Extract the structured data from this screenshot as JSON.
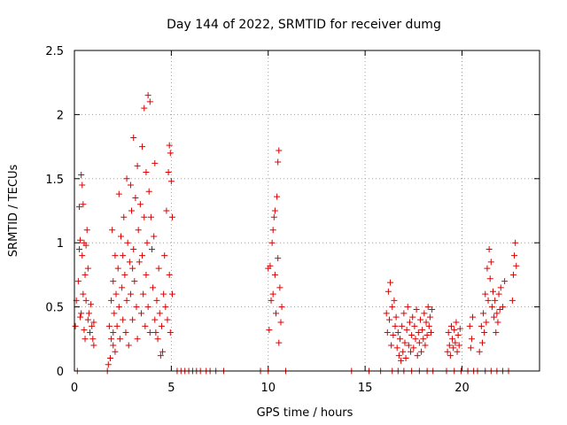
{
  "chart_data": {
    "type": "scatter",
    "title": "Day 144 of 2022, SRMTID for receiver dumg",
    "xlabel": "GPS time / hours",
    "ylabel": "SRMTID / TECUs",
    "xlim": [
      0,
      24
    ],
    "ylim": [
      0,
      2.5
    ],
    "xticks": [
      0,
      5,
      10,
      15,
      20
    ],
    "yticks": [
      0,
      0.5,
      1,
      1.5,
      2,
      2.5
    ],
    "xtick_labels": [
      "0",
      "5",
      "10",
      "15",
      "20"
    ],
    "ytick_labels": [
      "0",
      "0.5",
      "1",
      "1.5",
      "2",
      "2.5"
    ],
    "grid": true,
    "marker": "+",
    "color": "#dd0000",
    "series": [
      {
        "name": "SRMTID",
        "points": [
          [
            0.05,
            0.35
          ],
          [
            0.1,
            0.55
          ],
          [
            0.15,
            0.0
          ],
          [
            0.2,
            0.7
          ],
          [
            0.25,
            1.28
          ],
          [
            0.25,
            0.95
          ],
          [
            0.3,
            1.02
          ],
          [
            0.3,
            0.42
          ],
          [
            0.35,
            1.53
          ],
          [
            0.4,
            1.45
          ],
          [
            0.4,
            0.9
          ],
          [
            0.45,
            1.3
          ],
          [
            0.45,
            0.6
          ],
          [
            0.5,
            1.0
          ],
          [
            0.55,
            0.75
          ],
          [
            0.55,
            0.25
          ],
          [
            0.6,
            0.98
          ],
          [
            0.6,
            0.55
          ],
          [
            0.7,
            0.4
          ],
          [
            0.7,
            0.8
          ],
          [
            0.75,
            0.45
          ],
          [
            0.8,
            0.3
          ],
          [
            0.85,
            0.52
          ],
          [
            0.9,
            0.35
          ],
          [
            0.95,
            0.25
          ],
          [
            1.0,
            0.38
          ],
          [
            1.0,
            0.2
          ],
          [
            0.65,
            1.1
          ],
          [
            0.5,
            0.32
          ],
          [
            0.35,
            0.45
          ],
          [
            1.7,
            0.0
          ],
          [
            1.75,
            0.05
          ],
          [
            1.8,
            0.35
          ],
          [
            1.85,
            0.1
          ],
          [
            1.9,
            0.55
          ],
          [
            1.9,
            0.25
          ],
          [
            1.95,
            1.1
          ],
          [
            2.0,
            0.7
          ],
          [
            2.0,
            0.3
          ],
          [
            2.05,
            0.45
          ],
          [
            2.1,
            0.9
          ],
          [
            2.1,
            0.15
          ],
          [
            2.15,
            0.6
          ],
          [
            2.2,
            0.35
          ],
          [
            2.25,
            0.8
          ],
          [
            2.3,
            1.38
          ],
          [
            2.3,
            0.5
          ],
          [
            2.35,
            0.25
          ],
          [
            2.4,
            1.05
          ],
          [
            2.45,
            0.65
          ],
          [
            2.5,
            0.9
          ],
          [
            2.5,
            0.4
          ],
          [
            2.55,
            1.2
          ],
          [
            2.6,
            0.75
          ],
          [
            2.65,
            0.3
          ],
          [
            2.7,
            1.5
          ],
          [
            2.7,
            0.55
          ],
          [
            2.75,
            1.0
          ],
          [
            2.8,
            0.2
          ],
          [
            2.85,
            0.85
          ],
          [
            2.9,
            1.45
          ],
          [
            2.9,
            0.6
          ],
          [
            2.95,
            1.25
          ],
          [
            3.0,
            0.4
          ],
          [
            3.05,
            1.82
          ],
          [
            3.05,
            0.95
          ],
          [
            3.1,
            0.7
          ],
          [
            3.15,
            1.35
          ],
          [
            3.2,
            0.5
          ],
          [
            3.25,
            1.6
          ],
          [
            3.25,
            0.25
          ],
          [
            3.3,
            1.1
          ],
          [
            3.35,
            0.85
          ],
          [
            3.4,
            1.3
          ],
          [
            3.45,
            0.45
          ],
          [
            3.5,
            1.75
          ],
          [
            3.5,
            0.9
          ],
          [
            3.55,
            0.6
          ],
          [
            3.6,
            2.05
          ],
          [
            3.6,
            1.2
          ],
          [
            3.65,
            0.35
          ],
          [
            3.7,
            1.55
          ],
          [
            3.7,
            0.75
          ],
          [
            3.75,
            1.0
          ],
          [
            3.8,
            2.15
          ],
          [
            3.8,
            0.5
          ],
          [
            3.85,
            1.4
          ],
          [
            3.9,
            2.1
          ],
          [
            3.9,
            0.3
          ],
          [
            3.95,
            1.2
          ],
          [
            4.0,
            0.95
          ],
          [
            4.05,
            0.65
          ],
          [
            4.1,
            1.05
          ],
          [
            4.15,
            0.4
          ],
          [
            4.2,
            0.3
          ],
          [
            4.25,
            0.55
          ],
          [
            4.3,
            0.25
          ],
          [
            4.35,
            0.8
          ],
          [
            4.4,
            0.45
          ],
          [
            4.45,
            0.12
          ],
          [
            4.5,
            0.35
          ],
          [
            4.55,
            0.15
          ],
          [
            4.6,
            0.6
          ],
          [
            4.65,
            0.9
          ],
          [
            4.7,
            0.5
          ],
          [
            4.75,
            1.25
          ],
          [
            4.8,
            0.4
          ],
          [
            4.85,
            1.55
          ],
          [
            4.9,
            0.75
          ],
          [
            4.95,
            1.7
          ],
          [
            4.95,
            0.3
          ],
          [
            5.0,
            1.48
          ],
          [
            5.05,
            1.2
          ],
          [
            5.05,
            0.6
          ],
          [
            4.9,
            1.76
          ],
          [
            3.0,
            0.8
          ],
          [
            2.0,
            0.2
          ],
          [
            4.15,
            1.62
          ],
          [
            5.3,
            0.0
          ],
          [
            5.5,
            0.0
          ],
          [
            5.7,
            0.0
          ],
          [
            5.9,
            0.0
          ],
          [
            6.1,
            0.0
          ],
          [
            6.3,
            0.0
          ],
          [
            6.5,
            0.0
          ],
          [
            6.8,
            0.0
          ],
          [
            7.0,
            0.0
          ],
          [
            7.3,
            0.0
          ],
          [
            7.7,
            0.0
          ],
          [
            9.6,
            0.0
          ],
          [
            10.0,
            0.0
          ],
          [
            10.05,
            0.32
          ],
          [
            10.1,
            0.82
          ],
          [
            10.15,
            0.55
          ],
          [
            10.2,
            1.0
          ],
          [
            10.25,
            0.6
          ],
          [
            10.3,
            1.2
          ],
          [
            10.35,
            0.75
          ],
          [
            10.35,
            1.25
          ],
          [
            10.4,
            0.45
          ],
          [
            10.45,
            1.36
          ],
          [
            10.5,
            0.88
          ],
          [
            10.55,
            0.22
          ],
          [
            10.5,
            1.63
          ],
          [
            10.55,
            1.72
          ],
          [
            10.6,
            0.65
          ],
          [
            10.65,
            0.38
          ],
          [
            10.7,
            0.5
          ],
          [
            10.9,
            0.0
          ],
          [
            10.0,
            0.8
          ],
          [
            10.25,
            1.1
          ],
          [
            14.3,
            0.0
          ],
          [
            15.2,
            0.0
          ],
          [
            15.8,
            0.0
          ],
          [
            16.1,
            0.45
          ],
          [
            16.15,
            0.3
          ],
          [
            16.2,
            0.62
          ],
          [
            16.25,
            0.4
          ],
          [
            16.3,
            0.69
          ],
          [
            16.35,
            0.2
          ],
          [
            16.4,
            0.5
          ],
          [
            16.45,
            0.28
          ],
          [
            16.5,
            0.55
          ],
          [
            16.55,
            0.35
          ],
          [
            16.6,
            0.42
          ],
          [
            16.65,
            0.18
          ],
          [
            16.7,
            0.3
          ],
          [
            16.75,
            0.12
          ],
          [
            16.8,
            0.25
          ],
          [
            16.85,
            0.08
          ],
          [
            16.9,
            0.35
          ],
          [
            16.95,
            0.15
          ],
          [
            17.0,
            0.45
          ],
          [
            17.05,
            0.22
          ],
          [
            17.1,
            0.1
          ],
          [
            17.15,
            0.32
          ],
          [
            17.2,
            0.5
          ],
          [
            17.25,
            0.2
          ],
          [
            17.3,
            0.38
          ],
          [
            17.35,
            0.15
          ],
          [
            17.4,
            0.28
          ],
          [
            17.45,
            0.42
          ],
          [
            17.5,
            0.18
          ],
          [
            17.55,
            0.35
          ],
          [
            17.6,
            0.25
          ],
          [
            17.65,
            0.48
          ],
          [
            17.7,
            0.12
          ],
          [
            17.75,
            0.3
          ],
          [
            17.8,
            0.22
          ],
          [
            17.85,
            0.4
          ],
          [
            17.9,
            0.15
          ],
          [
            17.95,
            0.32
          ],
          [
            18.0,
            0.25
          ],
          [
            18.05,
            0.45
          ],
          [
            18.1,
            0.2
          ],
          [
            18.15,
            0.38
          ],
          [
            18.2,
            0.28
          ],
          [
            18.25,
            0.5
          ],
          [
            18.3,
            0.35
          ],
          [
            18.35,
            0.42
          ],
          [
            18.4,
            0.3
          ],
          [
            18.45,
            0.48
          ],
          [
            16.4,
            0.0
          ],
          [
            16.7,
            0.0
          ],
          [
            17.0,
            0.0
          ],
          [
            17.4,
            0.0
          ],
          [
            17.8,
            0.0
          ],
          [
            18.2,
            0.0
          ],
          [
            18.5,
            0.0
          ],
          [
            19.2,
            0.0
          ],
          [
            19.25,
            0.15
          ],
          [
            19.3,
            0.3
          ],
          [
            19.35,
            0.2
          ],
          [
            19.4,
            0.12
          ],
          [
            19.45,
            0.35
          ],
          [
            19.5,
            0.25
          ],
          [
            19.55,
            0.18
          ],
          [
            19.6,
            0.32
          ],
          [
            19.65,
            0.22
          ],
          [
            19.7,
            0.38
          ],
          [
            19.75,
            0.15
          ],
          [
            19.8,
            0.28
          ],
          [
            19.85,
            0.2
          ],
          [
            19.9,
            0.33
          ],
          [
            19.6,
            0.0
          ],
          [
            19.95,
            0.0
          ],
          [
            20.3,
            0.0
          ],
          [
            20.4,
            0.35
          ],
          [
            20.45,
            0.18
          ],
          [
            20.5,
            0.25
          ],
          [
            20.55,
            0.42
          ],
          [
            20.6,
            0.0
          ],
          [
            20.8,
            0.0
          ],
          [
            20.9,
            0.15
          ],
          [
            21.0,
            0.35
          ],
          [
            21.05,
            0.22
          ],
          [
            21.1,
            0.45
          ],
          [
            21.15,
            0.3
          ],
          [
            21.2,
            0.6
          ],
          [
            21.25,
            0.38
          ],
          [
            21.3,
            0.8
          ],
          [
            21.35,
            0.55
          ],
          [
            21.4,
            0.95
          ],
          [
            21.45,
            0.72
          ],
          [
            21.5,
            0.85
          ],
          [
            21.55,
            0.5
          ],
          [
            21.6,
            0.62
          ],
          [
            21.65,
            0.42
          ],
          [
            21.7,
            0.55
          ],
          [
            21.75,
            0.3
          ],
          [
            21.8,
            0.45
          ],
          [
            21.85,
            0.38
          ],
          [
            21.9,
            0.6
          ],
          [
            21.95,
            0.48
          ],
          [
            22.0,
            0.65
          ],
          [
            22.1,
            0.5
          ],
          [
            22.2,
            0.7
          ],
          [
            22.6,
            0.55
          ],
          [
            22.65,
            0.75
          ],
          [
            22.7,
            0.9
          ],
          [
            22.75,
            1.0
          ],
          [
            22.8,
            0.82
          ],
          [
            21.2,
            0.0
          ],
          [
            21.5,
            0.0
          ],
          [
            21.8,
            0.0
          ],
          [
            22.1,
            0.0
          ],
          [
            22.4,
            0.0
          ]
        ]
      }
    ]
  }
}
